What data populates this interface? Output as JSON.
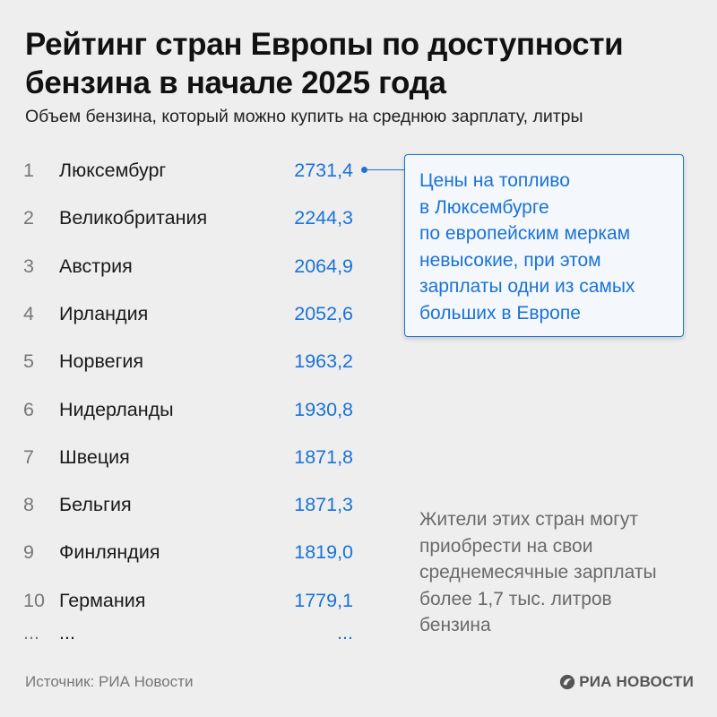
{
  "header": {
    "title": "Рейтинг стран Европы по доступности бензина в начале 2025 года",
    "subtitle": "Объем бензина, который можно купить на среднюю зарплату, литры"
  },
  "chart_data": {
    "type": "table",
    "title": "Рейтинг стран Европы по доступности бензина в начале 2025 года",
    "subtitle": "Объем бензина, который можно купить на среднюю зарплату, литры",
    "columns": [
      "rank",
      "country",
      "liters"
    ],
    "rows": [
      {
        "rank": "1",
        "country": "Люксембург",
        "value": "2731,4"
      },
      {
        "rank": "2",
        "country": "Великобритания",
        "value": "2244,3"
      },
      {
        "rank": "3",
        "country": "Австрия",
        "value": "2064,9"
      },
      {
        "rank": "4",
        "country": "Ирландия",
        "value": "2052,6"
      },
      {
        "rank": "5",
        "country": "Норвегия",
        "value": "1963,2"
      },
      {
        "rank": "6",
        "country": "Нидерланды",
        "value": "1930,8"
      },
      {
        "rank": "7",
        "country": "Швеция",
        "value": "1871,8"
      },
      {
        "rank": "8",
        "country": "Бельгия",
        "value": "1871,3"
      },
      {
        "rank": "9",
        "country": "Финляндия",
        "value": "1819,0"
      },
      {
        "rank": "10",
        "country": "Германия",
        "value": "1779,1"
      },
      {
        "rank": "...",
        "country": "...",
        "value": "..."
      }
    ],
    "value_color": "#1a73d6",
    "annotations": [
      "Цены на топливо\nв Люксембурге\nпо европейским меркам\nневысокие, при этом\nзарплаты одни из самых\nбольших в Европе",
      "Жители этих стран могут\nприобрести на свои\nсреднемесячные зарплаты\nболее 1,7 тыс. литров\nбензина"
    ]
  },
  "footer": {
    "source": "Источник: РИА Новости",
    "logo": "РИА НОВОСТИ",
    "logo_icon": "ria-novosti-logo-icon"
  },
  "colors": {
    "background": "#eeeeee",
    "accent": "#1a73d6",
    "muted": "#777777"
  }
}
